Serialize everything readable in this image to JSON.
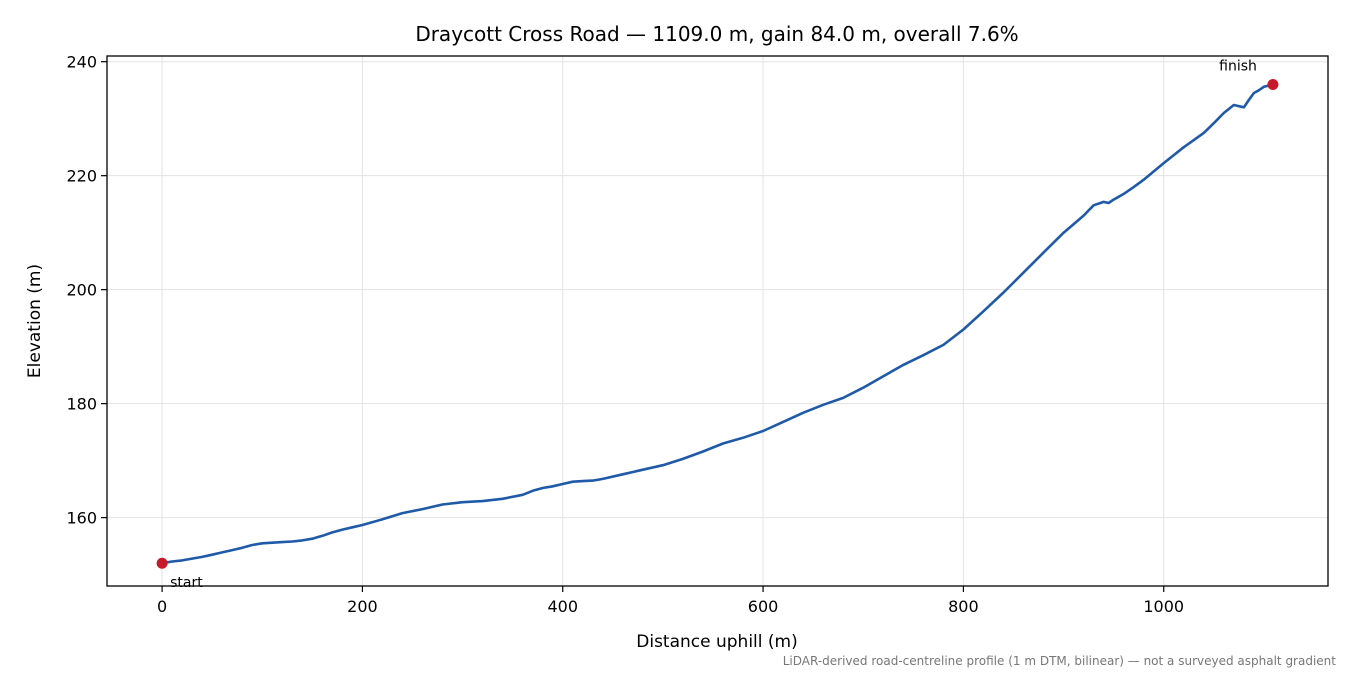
{
  "chart_data": {
    "type": "line",
    "title": "Draycott Cross Road — 1109.0 m, gain 84.0 m, overall 7.6%",
    "xlabel": "Distance uphill (m)",
    "ylabel": "Elevation (m)",
    "footnote": "LiDAR-derived road-centreline profile (1 m DTM, bilinear) — not a surveyed asphalt gradient",
    "xlim": [
      -55,
      1164
    ],
    "ylim": [
      148,
      241
    ],
    "xticks": [
      0,
      200,
      400,
      600,
      800,
      1000
    ],
    "yticks": [
      160,
      180,
      200,
      220,
      240
    ],
    "xtick_labels": [
      "0",
      "200",
      "400",
      "600",
      "800",
      "1000"
    ],
    "ytick_labels": [
      "160",
      "180",
      "200",
      "220",
      "240"
    ],
    "grid": true,
    "line_color": "#1f5aa8",
    "marker_color": "#c8192a",
    "series": [
      {
        "x": [
          0,
          10,
          20,
          30,
          40,
          50,
          60,
          70,
          80,
          90,
          100,
          110,
          120,
          130,
          140,
          150,
          160,
          170,
          180,
          190,
          200,
          220,
          240,
          260,
          280,
          300,
          320,
          340,
          360,
          370,
          380,
          390,
          400,
          410,
          420,
          430,
          440,
          460,
          480,
          500,
          520,
          540,
          560,
          580,
          600,
          620,
          640,
          660,
          680,
          700,
          720,
          740,
          760,
          780,
          800,
          820,
          840,
          860,
          880,
          900,
          920,
          930,
          940,
          945,
          950,
          955,
          960,
          970,
          980,
          1000,
          1020,
          1040,
          1050,
          1060,
          1070,
          1080,
          1085,
          1090,
          1095,
          1100,
          1109
        ],
        "y": [
          152.0,
          152.3,
          152.5,
          152.8,
          153.1,
          153.5,
          153.9,
          154.3,
          154.7,
          155.2,
          155.5,
          155.6,
          155.7,
          155.8,
          156.0,
          156.3,
          156.8,
          157.4,
          157.9,
          158.3,
          158.7,
          159.7,
          160.8,
          161.5,
          162.3,
          162.7,
          162.9,
          163.3,
          164.0,
          164.7,
          165.2,
          165.5,
          165.9,
          166.3,
          166.4,
          166.5,
          166.8,
          167.6,
          168.4,
          169.2,
          170.3,
          171.6,
          173.0,
          174.0,
          175.2,
          176.8,
          178.4,
          179.8,
          181.0,
          182.8,
          184.8,
          186.8,
          188.5,
          190.3,
          193.0,
          196.2,
          199.5,
          203.0,
          206.5,
          210.0,
          213.0,
          214.8,
          215.4,
          215.2,
          215.8,
          216.3,
          216.8,
          218.0,
          219.3,
          222.2,
          225.0,
          227.5,
          229.2,
          231.0,
          232.4,
          232.0,
          233.3,
          234.5,
          235.0,
          235.6,
          236.0
        ]
      }
    ],
    "annotations": [
      {
        "label": "start",
        "x": 0,
        "y": 152.0
      },
      {
        "label": "finish",
        "x": 1109,
        "y": 236.0
      }
    ]
  }
}
